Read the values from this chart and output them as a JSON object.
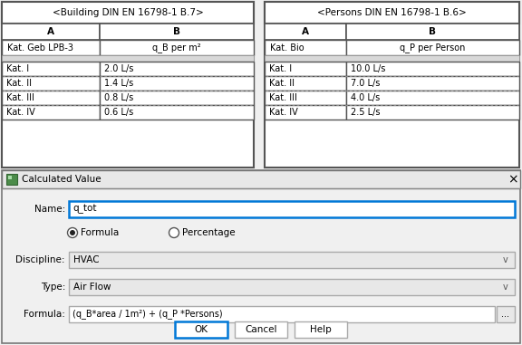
{
  "bg_color": "#f0f0f0",
  "white": "#ffffff",
  "light_gray": "#e8e8e8",
  "blue_border": "#0078d7",
  "building_title": "<Building DIN EN 16798-1 B.7>",
  "building_col_a": "A",
  "building_col_b": "B",
  "building_header_a": "Kat. Geb LPB-3",
  "building_header_b": "q_B per m²",
  "building_rows": [
    [
      "Kat. I",
      "2.0 L/s"
    ],
    [
      "Kat. II",
      "1.4 L/s"
    ],
    [
      "Kat. III",
      "0.8 L/s"
    ],
    [
      "Kat. IV",
      "0.6 L/s"
    ]
  ],
  "persons_title": "<Persons DIN EN 16798-1 B.6>",
  "persons_col_a": "A",
  "persons_col_b": "B",
  "persons_header_a": "Kat. Bio",
  "persons_header_b": "q_P per Person",
  "persons_rows": [
    [
      "Kat. I",
      "10.0 L/s"
    ],
    [
      "Kat. II",
      "7.0 L/s"
    ],
    [
      "Kat. III",
      "4.0 L/s"
    ],
    [
      "Kat. IV",
      "2.5 L/s"
    ]
  ],
  "dialog_title": "Calculated Value",
  "name_label": "Name:",
  "name_value": "q_tot",
  "formula_radio": "Formula",
  "percentage_radio": "Percentage",
  "discipline_label": "Discipline:",
  "discipline_value": "HVAC",
  "type_label": "Type:",
  "type_value": "Air Flow",
  "formula_label": "Formula:",
  "formula_value": "(q_B*area / 1m²) + (q_P *Persons)",
  "btn_ok": "OK",
  "btn_cancel": "Cancel",
  "btn_help": "Help"
}
